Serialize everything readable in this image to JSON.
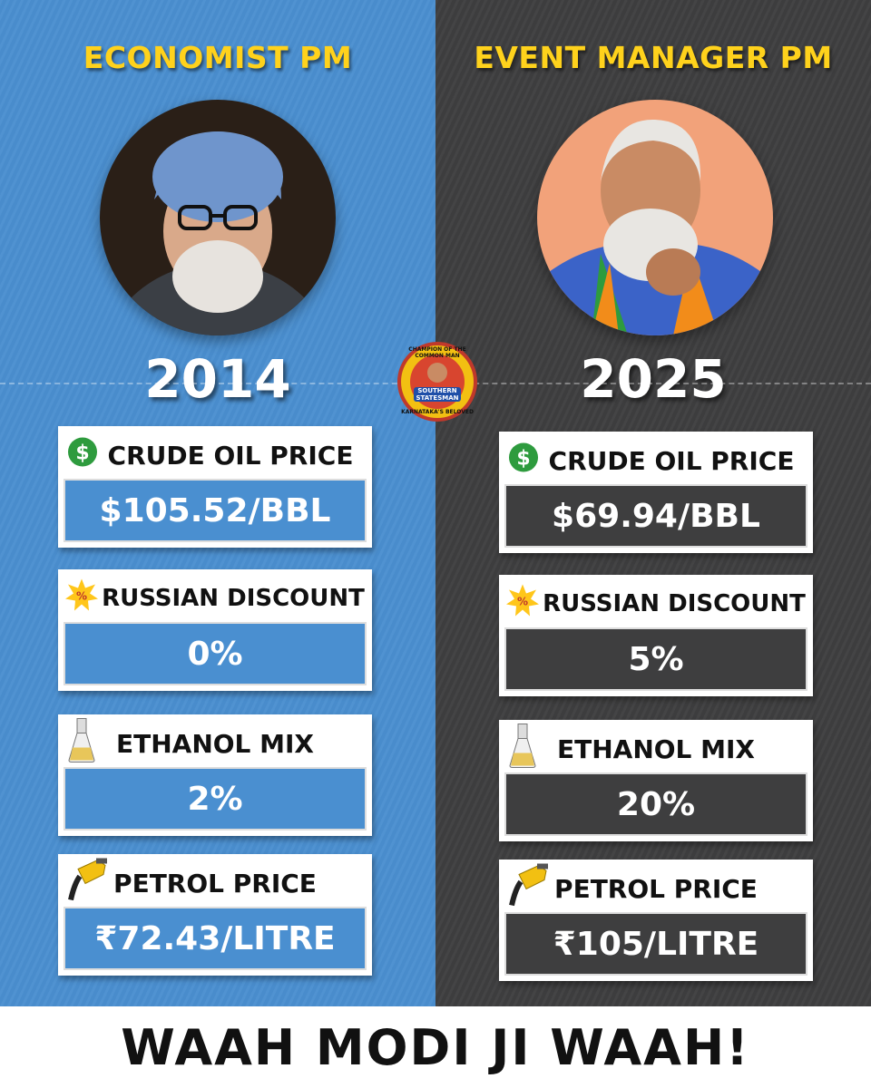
{
  "left": {
    "title": "ECONOMIST PM",
    "year": "2014",
    "photo_icon": "portrait-economist-pm",
    "crude": {
      "label": "CRUDE OIL PRICE",
      "value": "$105.52/BBL",
      "icon": "dollar-icon"
    },
    "discount": {
      "label": "RUSSIAN DISCOUNT",
      "value": "0%",
      "icon": "percent-badge-icon"
    },
    "ethanol": {
      "label": "ETHANOL MIX",
      "value": "2%",
      "icon": "flask-icon"
    },
    "petrol": {
      "label": "PETROL PRICE",
      "value": "₹72.43/LITRE",
      "icon": "fuel-nozzle-icon"
    }
  },
  "right": {
    "title": "EVENT MANAGER PM",
    "year": "2025",
    "photo_icon": "portrait-event-manager-pm",
    "crude": {
      "label": "CRUDE OIL PRICE",
      "value": "$69.94/BBL",
      "icon": "dollar-icon"
    },
    "discount": {
      "label": "RUSSIAN DISCOUNT",
      "value": "5%",
      "icon": "percent-badge-icon"
    },
    "ethanol": {
      "label": "ETHANOL MIX",
      "value": "20%",
      "icon": "flask-icon"
    },
    "petrol": {
      "label": "PETROL PRICE",
      "value": "₹105/LITRE",
      "icon": "fuel-nozzle-icon"
    }
  },
  "badge": {
    "top_text": "CHAMPION OF THE COMMON MAN",
    "name_line1": "SOUTHERN",
    "name_line2": "STATESMAN",
    "bottom_text": "KARNATAKA'S BELOVED"
  },
  "footer": {
    "text": "WAAH MODI JI WAAH!"
  },
  "colors": {
    "left_bg": "#4a8fd0",
    "right_bg": "#3e3e3f",
    "title_yellow": "#ffd21c",
    "dollar_green": "#2e9b3e"
  }
}
